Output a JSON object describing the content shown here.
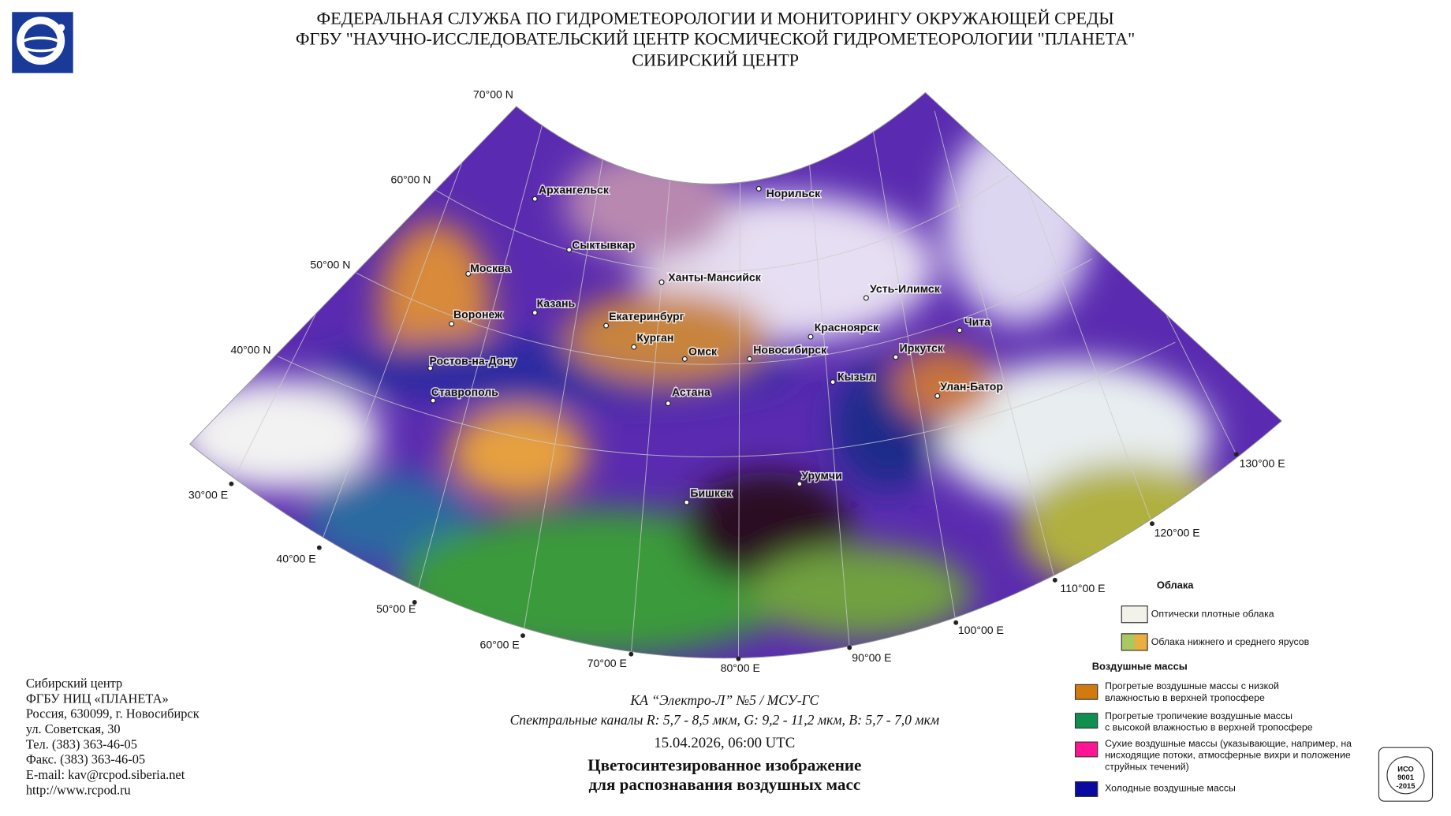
{
  "header": {
    "lines": [
      "ФЕДЕРАЛЬНАЯ СЛУЖБА ПО ГИДРОМЕТЕОРОЛОГИИ И МОНИТОРИНГУ ОКРУЖАЮЩЕЙ СРЕДЫ",
      "ФГБУ \"НАУЧНО-ИССЛЕДОВАТЕЛЬСКИЙ ЦЕНТР КОСМИЧЕСКОЙ ГИДРОМЕТЕОРОЛОГИИ \"ПЛАНЕТА\"",
      "СИБИРСКИЙ ЦЕНТР"
    ]
  },
  "map": {
    "latitude_labels": [
      "70°00 N",
      "60°00 N",
      "50°00 N",
      "40°00 N"
    ],
    "longitude_labels": [
      "30°00 E",
      "40°00 E",
      "50°00 E",
      "60°00 E",
      "70°00 E",
      "80°00 E",
      "90°00 E",
      "100°00 E",
      "110°00 E",
      "120°00 E",
      "130°00 E"
    ],
    "cities": [
      "Архангельск",
      "Сыктывкар",
      "Москва",
      "Казань",
      "Воронеж",
      "Ростов-на-Дону",
      "Ставрополь",
      "Екатеринбург",
      "Курган",
      "Омск",
      "Астана",
      "Ханты-Мансийск",
      "Норильск",
      "Новосибирск",
      "Красноярск",
      "Усть-Илимск",
      "Чита",
      "Иркутск",
      "Кызыл",
      "Улан-Батор",
      "Урумчи",
      "Бишкек"
    ]
  },
  "legend": {
    "clouds_title": "Облака",
    "clouds": [
      "Оптически плотные облака",
      "Облака нижнего и среднего ярусов"
    ],
    "air_title": "Воздушные массы",
    "air": [
      [
        "Прогретые воздушные массы с низкой",
        "влажностью в верхней тропосфере"
      ],
      [
        "Прогретые тропичекие воздушные массы",
        "с высокой влажностью в верхней тропосфере"
      ],
      [
        "Сухие воздушные массы (указывающие, например, на",
        "нисходящие потоки, атмосферные вихри и положение",
        "струйных течений)"
      ],
      [
        "Холодные воздушные массы"
      ]
    ]
  },
  "contact": {
    "lines": [
      "Сибирский центр",
      "ФГБУ НИЦ «ПЛАНЕТА»",
      "Россия, 630099, г. Новосибирск",
      "ул. Советская, 30",
      "Тел. (383) 363-46-05",
      "Факс. (383) 363-46-05",
      "E-mail: kav@rcpod.siberia.net",
      "http://www.rcpod.ru"
    ]
  },
  "caption": {
    "satellite": "КА “Электро-Л” №5 / МСУ-ГС",
    "channels": "Спектральные каналы R: 5,7 - 8,5 мкм, G: 9,2 - 11,2 мкм, B: 5,7 - 7,0 мкм",
    "datetime": "15.04.2026, 06:00 UTC",
    "title_lines": [
      "Цветосинтезированное изображение",
      "для распознавания воздушных масс"
    ]
  },
  "badge": {
    "lines": [
      "ИСО",
      "9001",
      "-2015"
    ]
  }
}
